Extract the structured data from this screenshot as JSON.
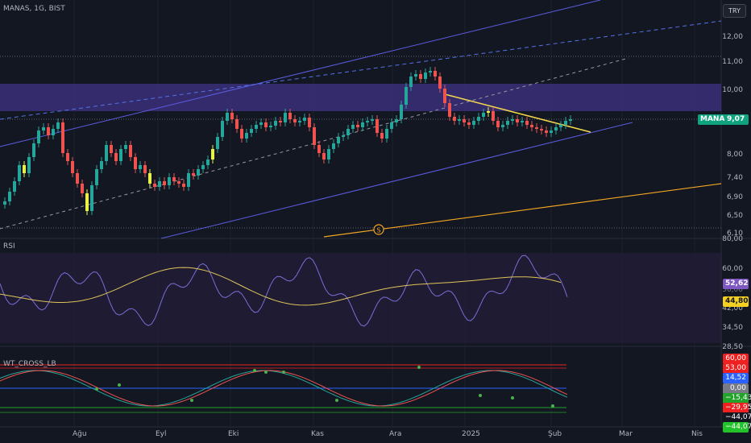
{
  "header": {
    "symbol_label": "MANAS, 1G, BIST",
    "currency": "TRY"
  },
  "colors": {
    "background": "#131722",
    "bull": "#26a69a",
    "bear": "#ef5350",
    "yellow_candle": "#e8f04a",
    "channel": "#5b5ce0",
    "zone": "#3b2f7a",
    "trendline": "#f2d84a",
    "orange_line": "#f5a623",
    "rsi_line": "#7a6fd6",
    "rsi_ma": "#e0c55a"
  },
  "price_pane": {
    "y_ticks": [
      "12,00",
      "11,00",
      "10,00",
      "8,00",
      "7,40",
      "6,90",
      "6,50",
      "6,10"
    ],
    "symbol_badge": "MANAS",
    "price_badge": "9,07",
    "dividend_marker": "S"
  },
  "rsi_pane": {
    "title": "RSI",
    "y_ticks": [
      "80,00",
      "60,00",
      "50,00",
      "42,00",
      "34,50",
      "28,50"
    ],
    "value_badge": "52,62",
    "ma_badge": "44,80"
  },
  "wt_pane": {
    "title": "WT_CROSS_LB",
    "badges": [
      {
        "text": "60,00",
        "bg": "#ef2020",
        "fg": "#ffffff"
      },
      {
        "text": "53,00",
        "bg": "#ef2020",
        "fg": "#ffffff"
      },
      {
        "text": "14,52",
        "bg": "#2962ff",
        "fg": "#ffffff"
      },
      {
        "text": "0,00",
        "bg": "#787b86",
        "fg": "#ffffff"
      },
      {
        "text": "−15,43",
        "bg": "#22a32a",
        "fg": "#ffffff"
      },
      {
        "text": "−29,95",
        "bg": "#ef2020",
        "fg": "#ffffff"
      },
      {
        "text": "−44,07",
        "bg": "#131722",
        "fg": "#ffffff"
      },
      {
        "text": "−44,07",
        "bg": "#22c22a",
        "fg": "#ffffff"
      }
    ]
  },
  "x_axis": {
    "labels": [
      "Ağu",
      "Eyl",
      "Eki",
      "Kas",
      "Ara",
      "2025",
      "Şub",
      "Mar",
      "Nis"
    ]
  }
}
